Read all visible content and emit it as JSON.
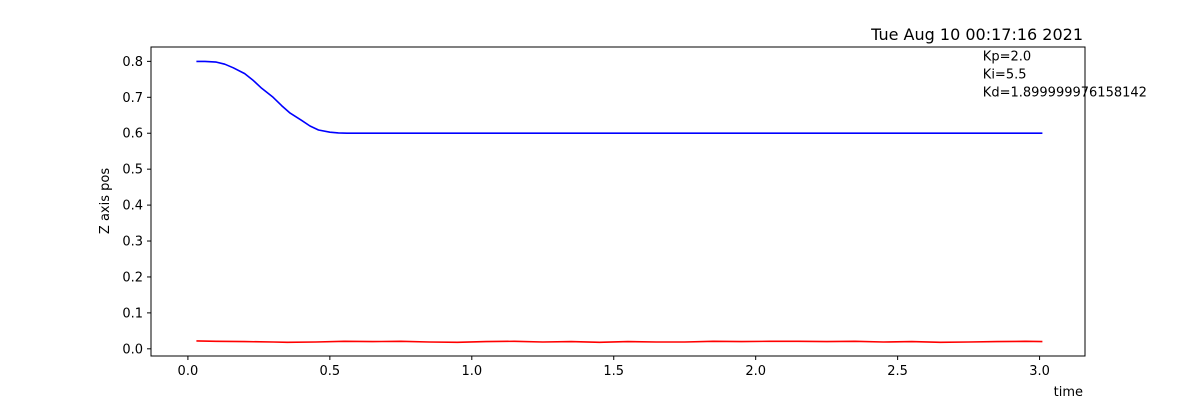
{
  "chart_data": {
    "type": "line",
    "title": "Tue Aug 10 00:17:16 2021",
    "xlabel": "time",
    "ylabel": "Z axis pos",
    "xlim": [
      -0.13,
      3.16
    ],
    "ylim": [
      -0.02,
      0.84
    ],
    "xticks": [
      0.0,
      0.5,
      1.0,
      1.5,
      2.0,
      2.5,
      3.0
    ],
    "xtick_labels": [
      "0.0",
      "0.5",
      "1.0",
      "1.5",
      "2.0",
      "2.5",
      "3.0"
    ],
    "yticks": [
      0.0,
      0.1,
      0.2,
      0.3,
      0.4,
      0.5,
      0.6,
      0.7,
      0.8
    ],
    "ytick_labels": [
      "0.0",
      "0.1",
      "0.2",
      "0.3",
      "0.4",
      "0.5",
      "0.6",
      "0.7",
      "0.8"
    ],
    "grid": false,
    "annotations": [
      "Kp=2.0",
      "Ki=5.5",
      "Kd=1.899999976158142"
    ],
    "annotation_anchor": {
      "x": 2.8,
      "y": 0.8
    },
    "series": [
      {
        "color": "#0000ff",
        "x": [
          0.03,
          0.06,
          0.1,
          0.13,
          0.16,
          0.2,
          0.23,
          0.26,
          0.3,
          0.33,
          0.36,
          0.4,
          0.43,
          0.46,
          0.5,
          0.53,
          0.56,
          0.6,
          0.8,
          1.0,
          1.5,
          2.0,
          2.5,
          3.01
        ],
        "y": [
          0.8,
          0.8,
          0.798,
          0.792,
          0.782,
          0.766,
          0.747,
          0.725,
          0.7,
          0.677,
          0.656,
          0.636,
          0.62,
          0.609,
          0.603,
          0.601,
          0.6,
          0.6,
          0.6,
          0.6,
          0.6,
          0.6,
          0.6,
          0.6
        ]
      },
      {
        "color": "#ff0000",
        "x": [
          0.03,
          0.1,
          0.2,
          0.3,
          0.35,
          0.45,
          0.55,
          0.65,
          0.75,
          0.85,
          0.95,
          1.05,
          1.15,
          1.25,
          1.35,
          1.45,
          1.55,
          1.65,
          1.75,
          1.85,
          1.95,
          2.05,
          2.15,
          2.25,
          2.35,
          2.45,
          2.55,
          2.65,
          2.75,
          2.85,
          2.95,
          3.01
        ],
        "y": [
          0.022,
          0.021,
          0.02,
          0.019,
          0.018,
          0.019,
          0.021,
          0.02,
          0.021,
          0.019,
          0.018,
          0.02,
          0.021,
          0.019,
          0.02,
          0.018,
          0.02,
          0.019,
          0.019,
          0.021,
          0.02,
          0.021,
          0.021,
          0.02,
          0.021,
          0.019,
          0.02,
          0.018,
          0.019,
          0.02,
          0.021,
          0.02
        ]
      }
    ]
  }
}
